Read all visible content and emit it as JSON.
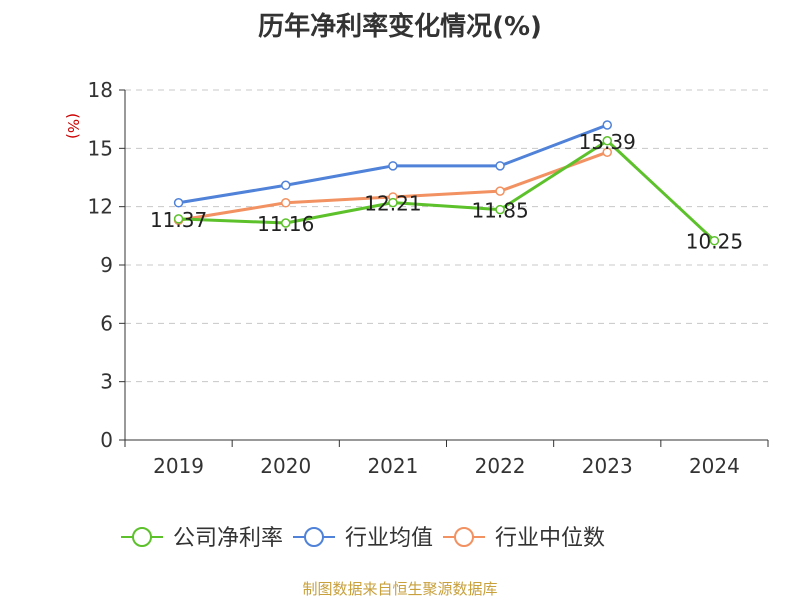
{
  "title": "历年净利率变化情况(%)",
  "source": "制图数据来自恒生聚源数据库",
  "chart_data": {
    "type": "line",
    "title": "历年净利率变化情况(%)",
    "ylabel": "(%)",
    "xlabel": "",
    "categories": [
      "2019",
      "2020",
      "2021",
      "2022",
      "2023",
      "2024"
    ],
    "ylim": [
      0,
      18
    ],
    "yticks": [
      0,
      3,
      6,
      9,
      12,
      15,
      18
    ],
    "grid": true,
    "legend_position": "bottom",
    "series": [
      {
        "name": "公司净利率",
        "color": "#5cc12a",
        "values": [
          11.37,
          11.16,
          12.21,
          11.85,
          15.39,
          10.25
        ],
        "show_labels": true
      },
      {
        "name": "行业均值",
        "color": "#4f82d8",
        "values": [
          12.2,
          13.1,
          14.1,
          14.1,
          16.2,
          null
        ],
        "show_labels": false
      },
      {
        "name": "行业中位数",
        "color": "#f29161",
        "values": [
          11.3,
          12.2,
          12.5,
          12.8,
          14.8,
          null
        ],
        "show_labels": false
      }
    ]
  }
}
